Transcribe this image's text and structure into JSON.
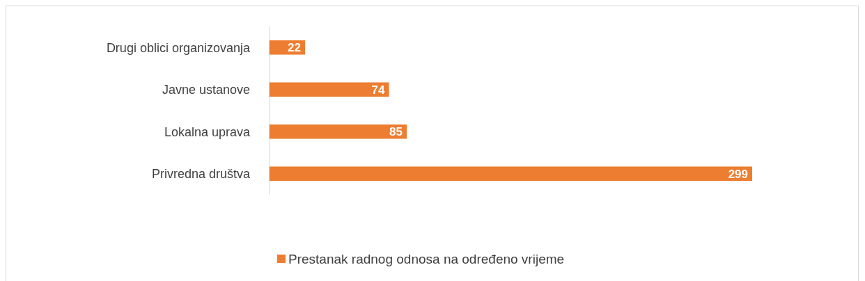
{
  "chart_data": {
    "type": "bar",
    "orientation": "horizontal",
    "categories": [
      "Drugi oblici organizovanja",
      "Javne ustanove",
      "Lokalna uprava",
      "Privredna društva"
    ],
    "series": [
      {
        "name": "Prestanak radnog odnosa na određeno vrijeme",
        "color": "#ed7d31",
        "values": [
          22,
          74,
          85,
          299
        ]
      }
    ],
    "data_labels": true,
    "legend": "bottom",
    "grid": false
  }
}
